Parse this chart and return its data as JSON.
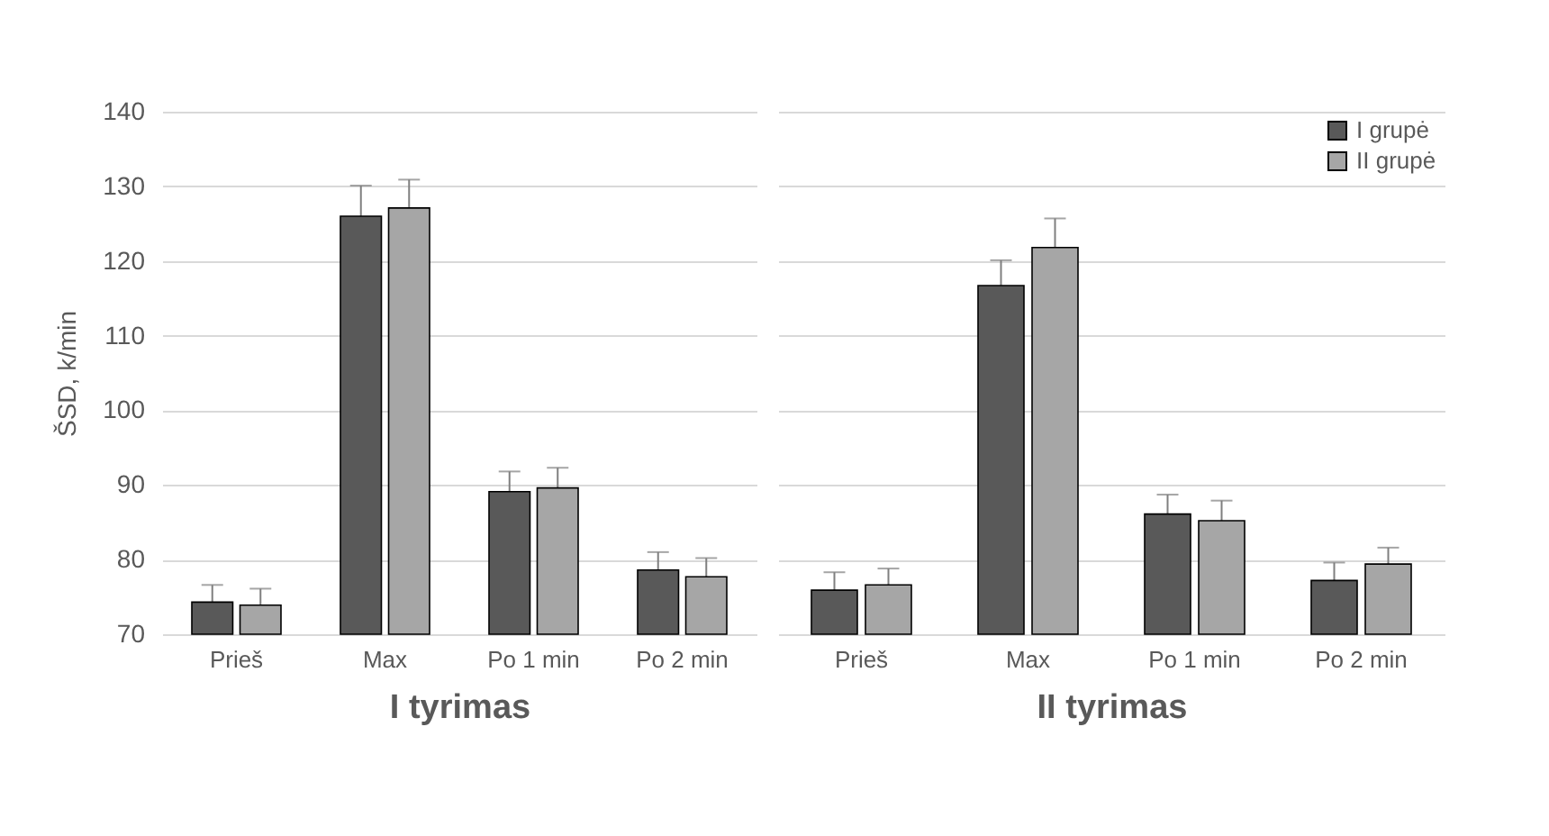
{
  "chart_data": [
    {
      "type": "bar",
      "categories": [
        "Prieš",
        "Max",
        "Po 1 min",
        "Po 2 min"
      ],
      "xlabel": "I tyrimas",
      "ylabel": "ŠSD, k/min",
      "ylim": [
        70,
        140
      ],
      "yticks": [
        70,
        80,
        90,
        100,
        110,
        120,
        130,
        140
      ],
      "grid": "y",
      "series": [
        {
          "color": "#595959",
          "values": [
            74.3,
            126.0,
            89.1,
            78.6
          ],
          "errors": [
            2.3,
            4.1,
            2.7,
            2.4
          ]
        },
        {
          "color": "#a6a6a6",
          "values": [
            73.9,
            127.1,
            89.6,
            77.7
          ],
          "errors": [
            2.2,
            3.8,
            2.7,
            2.5
          ]
        }
      ]
    },
    {
      "type": "bar",
      "categories": [
        "Prieš",
        "Max",
        "Po 1 min",
        "Po 2 min"
      ],
      "xlabel": "II tyrimas",
      "ylim": [
        70,
        140
      ],
      "yticks": [
        70,
        80,
        90,
        100,
        110,
        120,
        130,
        140
      ],
      "grid": "y",
      "tick_labels": "x",
      "legend": "top right",
      "series": [
        {
          "name": "I grupė",
          "color": "#595959",
          "values": [
            75.9,
            116.7,
            86.1,
            77.2
          ],
          "errors": [
            2.4,
            3.4,
            2.6,
            2.4
          ]
        },
        {
          "name": "II grupė",
          "color": "#a6a6a6",
          "values": [
            76.6,
            121.8,
            85.2,
            79.4
          ],
          "errors": [
            2.2,
            3.9,
            2.7,
            2.2
          ]
        }
      ]
    }
  ]
}
